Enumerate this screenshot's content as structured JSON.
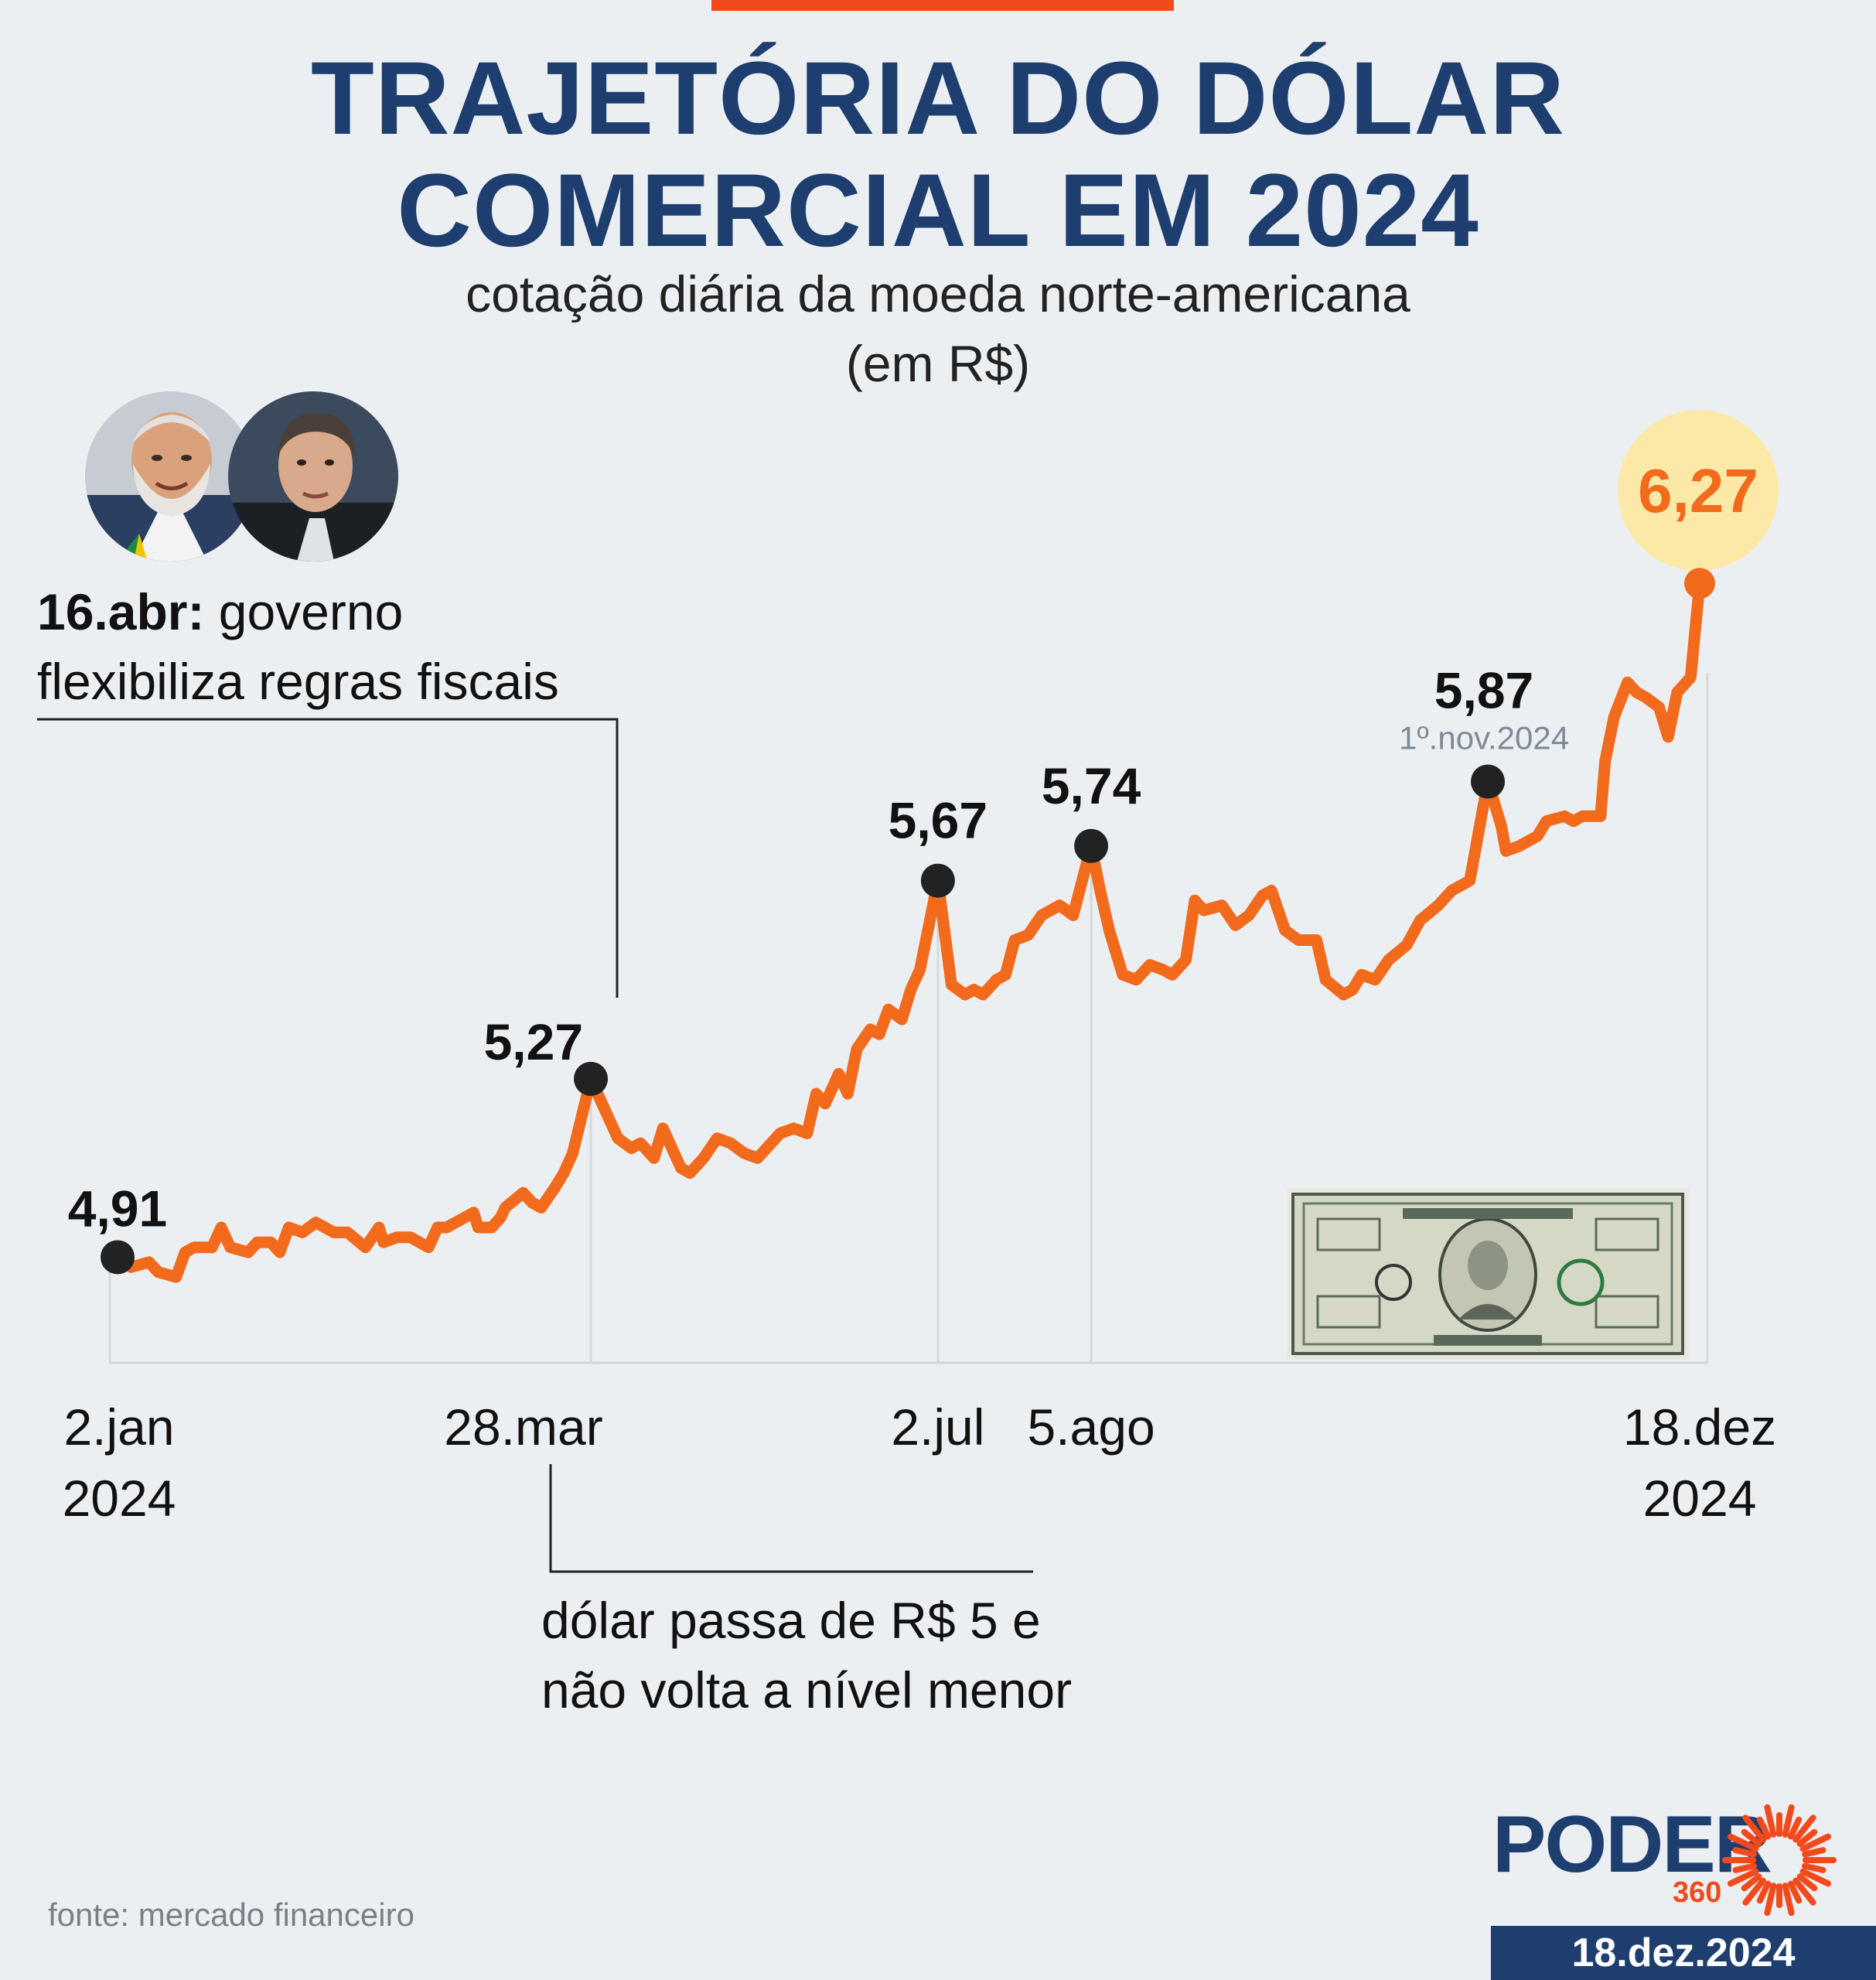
{
  "title_line1": "TRAJETÓRIA DO DÓLAR",
  "title_line2": "COMERCIAL EM 2024",
  "subtitle_line1": "cotação diária da moeda norte-americana",
  "subtitle_line2": "(em R$)",
  "annotations": {
    "fiscal_date": "16.abr:",
    "fiscal_text1": " governo",
    "fiscal_text2": "flexibiliza regras fiscais",
    "threshold_text1": "dólar passa de R$ 5 e",
    "threshold_text2": "não volta a nível menor"
  },
  "source": "fonte: mercado financeiro",
  "logo": {
    "name": "PODER",
    "suffix": "360"
  },
  "publish_date": "18.dez.2024",
  "colors": {
    "line": "#f26a1c",
    "title": "#1d3e6e",
    "marker": "#222222",
    "highlight": "#fce9a8",
    "background": "#eceff2"
  },
  "chart_data": {
    "type": "line",
    "title": "TRAJETÓRIA DO DÓLAR COMERCIAL EM 2024",
    "subtitle": "cotação diária da moeda norte-americana (em R$)",
    "xlabel": "",
    "ylabel": "",
    "x_range": [
      "2024-01-02",
      "2024-12-18"
    ],
    "ylim": [
      4.7,
      6.3
    ],
    "grid": false,
    "x_ticks": [
      {
        "x": "2024-01-02",
        "line1": "2.jan",
        "line2": "2024"
      },
      {
        "x": "2024-03-28",
        "line1": "28.mar",
        "line2": ""
      },
      {
        "x": "2024-07-02",
        "line1": "2.jul",
        "line2": ""
      },
      {
        "x": "2024-08-05",
        "line1": "5.ago",
        "line2": ""
      },
      {
        "x": "2024-12-18",
        "line1": "18.dez",
        "line2": "2024"
      }
    ],
    "highlights": [
      {
        "x": "2024-01-02",
        "value": 4.91,
        "label": "4,91",
        "note": ""
      },
      {
        "x": "2024-04-16",
        "value": 5.27,
        "label": "5,27",
        "note": ""
      },
      {
        "x": "2024-07-02",
        "value": 5.67,
        "label": "5,67",
        "note": ""
      },
      {
        "x": "2024-08-05",
        "value": 5.74,
        "label": "5,74",
        "note": ""
      },
      {
        "x": "2024-11-01",
        "value": 5.87,
        "label": "5,87",
        "note": "1º.nov.2024"
      },
      {
        "x": "2024-12-18",
        "value": 6.27,
        "label": "6,27",
        "note": ""
      }
    ],
    "series": [
      {
        "values": [
          [
            "2024-01-02",
            4.91
          ],
          [
            "2024-01-05",
            4.89
          ],
          [
            "2024-01-09",
            4.9
          ],
          [
            "2024-01-11",
            4.88
          ],
          [
            "2024-01-15",
            4.87
          ],
          [
            "2024-01-17",
            4.92
          ],
          [
            "2024-01-19",
            4.93
          ],
          [
            "2024-01-23",
            4.93
          ],
          [
            "2024-01-25",
            4.97
          ],
          [
            "2024-01-27",
            4.93
          ],
          [
            "2024-01-31",
            4.92
          ],
          [
            "2024-02-02",
            4.94
          ],
          [
            "2024-02-05",
            4.94
          ],
          [
            "2024-02-07",
            4.92
          ],
          [
            "2024-02-09",
            4.97
          ],
          [
            "2024-02-12",
            4.96
          ],
          [
            "2024-02-15",
            4.98
          ],
          [
            "2024-02-19",
            4.96
          ],
          [
            "2024-02-22",
            4.96
          ],
          [
            "2024-02-26",
            4.93
          ],
          [
            "2024-02-29",
            4.97
          ],
          [
            "2024-03-01",
            4.94
          ],
          [
            "2024-03-04",
            4.95
          ],
          [
            "2024-03-07",
            4.95
          ],
          [
            "2024-03-11",
            4.93
          ],
          [
            "2024-03-13",
            4.97
          ],
          [
            "2024-03-15",
            4.97
          ],
          [
            "2024-03-19",
            4.99
          ],
          [
            "2024-03-21",
            5.0
          ],
          [
            "2024-03-22",
            4.97
          ],
          [
            "2024-03-25",
            4.97
          ],
          [
            "2024-03-27",
            4.99
          ],
          [
            "2024-03-28",
            5.01
          ],
          [
            "2024-04-01",
            5.04
          ],
          [
            "2024-04-03",
            5.02
          ],
          [
            "2024-04-05",
            5.01
          ],
          [
            "2024-04-08",
            5.05
          ],
          [
            "2024-04-10",
            5.08
          ],
          [
            "2024-04-12",
            5.12
          ],
          [
            "2024-04-16",
            5.27
          ],
          [
            "2024-04-18",
            5.23
          ],
          [
            "2024-04-22",
            5.15
          ],
          [
            "2024-04-25",
            5.13
          ],
          [
            "2024-04-27",
            5.14
          ],
          [
            "2024-04-30",
            5.11
          ],
          [
            "2024-05-02",
            5.17
          ],
          [
            "2024-05-06",
            5.09
          ],
          [
            "2024-05-08",
            5.08
          ],
          [
            "2024-05-11",
            5.11
          ],
          [
            "2024-05-14",
            5.15
          ],
          [
            "2024-05-17",
            5.14
          ],
          [
            "2024-05-20",
            5.12
          ],
          [
            "2024-05-23",
            5.11
          ],
          [
            "2024-05-25",
            5.13
          ],
          [
            "2024-05-28",
            5.16
          ],
          [
            "2024-05-31",
            5.17
          ],
          [
            "2024-06-03",
            5.16
          ],
          [
            "2024-06-05",
            5.24
          ],
          [
            "2024-06-07",
            5.22
          ],
          [
            "2024-06-10",
            5.28
          ],
          [
            "2024-06-12",
            5.24
          ],
          [
            "2024-06-14",
            5.33
          ],
          [
            "2024-06-17",
            5.37
          ],
          [
            "2024-06-19",
            5.36
          ],
          [
            "2024-06-21",
            5.41
          ],
          [
            "2024-06-24",
            5.39
          ],
          [
            "2024-06-26",
            5.45
          ],
          [
            "2024-06-28",
            5.49
          ],
          [
            "2024-07-02",
            5.67
          ],
          [
            "2024-07-05",
            5.46
          ],
          [
            "2024-07-08",
            5.44
          ],
          [
            "2024-07-10",
            5.45
          ],
          [
            "2024-07-12",
            5.44
          ],
          [
            "2024-07-15",
            5.47
          ],
          [
            "2024-07-17",
            5.48
          ],
          [
            "2024-07-19",
            5.55
          ],
          [
            "2024-07-22",
            5.56
          ],
          [
            "2024-07-25",
            5.6
          ],
          [
            "2024-07-29",
            5.62
          ],
          [
            "2024-08-01",
            5.6
          ],
          [
            "2024-08-05",
            5.74
          ],
          [
            "2024-08-07",
            5.65
          ],
          [
            "2024-08-09",
            5.57
          ],
          [
            "2024-08-12",
            5.48
          ],
          [
            "2024-08-15",
            5.47
          ],
          [
            "2024-08-18",
            5.5
          ],
          [
            "2024-08-21",
            5.49
          ],
          [
            "2024-08-23",
            5.48
          ],
          [
            "2024-08-26",
            5.51
          ],
          [
            "2024-08-28",
            5.63
          ],
          [
            "2024-08-30",
            5.61
          ],
          [
            "2024-09-03",
            5.62
          ],
          [
            "2024-09-06",
            5.58
          ],
          [
            "2024-09-09",
            5.6
          ],
          [
            "2024-09-12",
            5.64
          ],
          [
            "2024-09-14",
            5.65
          ],
          [
            "2024-09-17",
            5.57
          ],
          [
            "2024-09-20",
            5.55
          ],
          [
            "2024-09-24",
            5.55
          ],
          [
            "2024-09-26",
            5.47
          ],
          [
            "2024-09-30",
            5.44
          ],
          [
            "2024-10-02",
            5.45
          ],
          [
            "2024-10-04",
            5.48
          ],
          [
            "2024-10-07",
            5.47
          ],
          [
            "2024-10-10",
            5.51
          ],
          [
            "2024-10-14",
            5.54
          ],
          [
            "2024-10-17",
            5.59
          ],
          [
            "2024-10-21",
            5.62
          ],
          [
            "2024-10-24",
            5.65
          ],
          [
            "2024-10-28",
            5.67
          ],
          [
            "2024-11-01",
            5.87
          ],
          [
            "2024-11-04",
            5.78
          ],
          [
            "2024-11-05",
            5.73
          ],
          [
            "2024-11-08",
            5.74
          ],
          [
            "2024-11-12",
            5.76
          ],
          [
            "2024-11-14",
            5.79
          ],
          [
            "2024-11-18",
            5.8
          ],
          [
            "2024-11-20",
            5.79
          ],
          [
            "2024-11-22",
            5.8
          ],
          [
            "2024-11-26",
            5.8
          ],
          [
            "2024-11-27",
            5.91
          ],
          [
            "2024-11-29",
            6.0
          ],
          [
            "2024-12-02",
            6.07
          ],
          [
            "2024-12-04",
            6.05
          ],
          [
            "2024-12-06",
            6.04
          ],
          [
            "2024-12-09",
            6.02
          ],
          [
            "2024-12-11",
            5.96
          ],
          [
            "2024-12-13",
            6.05
          ],
          [
            "2024-12-16",
            6.08
          ],
          [
            "2024-12-18",
            6.27
          ]
        ]
      }
    ]
  }
}
